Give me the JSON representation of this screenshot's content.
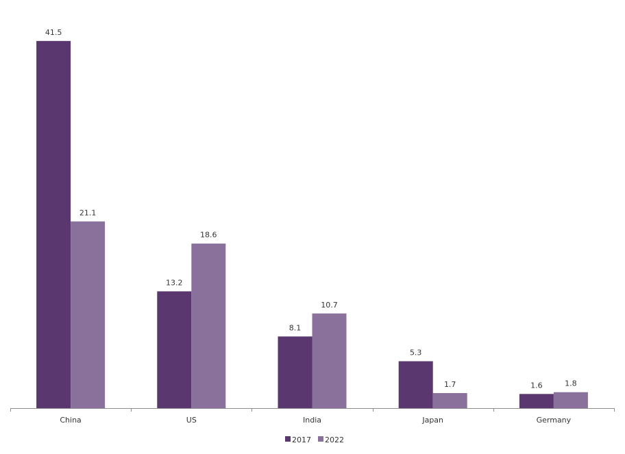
{
  "chart_data": {
    "type": "bar",
    "title": "",
    "xlabel": "",
    "ylabel": "",
    "categories": [
      "China",
      "US",
      "India",
      "Japan",
      "Germany"
    ],
    "series": [
      {
        "name": "2017",
        "values": [
          41.5,
          13.2,
          8.1,
          5.3,
          1.6
        ],
        "color": "#5b3770"
      },
      {
        "name": "2022",
        "values": [
          21.1,
          18.6,
          10.7,
          1.7,
          1.8
        ],
        "color": "#8a719c"
      }
    ],
    "ylim": [
      0,
      45
    ],
    "grid": false,
    "legend": "bottom-center",
    "data_labels": true
  }
}
